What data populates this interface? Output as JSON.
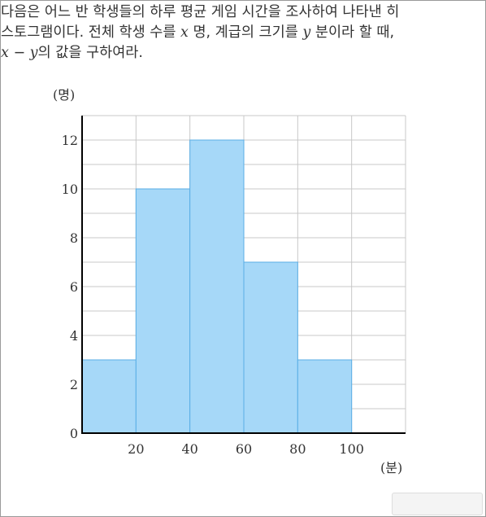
{
  "question": {
    "line1": "다음은 어느 반 학생들의 하루 평균 게임 시간을 조사하여 나타낸 히",
    "line2_a": "스토그램이다. 전체 학생 수를 ",
    "var_x": "x",
    "line2_b": " 명, 계급의 크기를 ",
    "var_y": "y",
    "line2_c": " 분이라 할 때,",
    "line3_x": "x",
    "line3_minus": " − ",
    "line3_y": "y",
    "line3_rest": "의 값을 구하여라."
  },
  "colors": {
    "bar_fill": "#a6d8f8",
    "bar_stroke": "#5aaee6",
    "grid": "#c8c8c8",
    "axis": "#000000",
    "answer_box": "#f4f4f4"
  },
  "chart_data": {
    "type": "bar",
    "subtype": "histogram",
    "bins": [
      {
        "start": 0,
        "end": 20,
        "value": 3
      },
      {
        "start": 20,
        "end": 40,
        "value": 10
      },
      {
        "start": 40,
        "end": 60,
        "value": 12
      },
      {
        "start": 60,
        "end": 80,
        "value": 7
      },
      {
        "start": 80,
        "end": 100,
        "value": 3
      }
    ],
    "x_ticks": [
      20,
      40,
      60,
      80,
      100
    ],
    "y_ticks": [
      0,
      2,
      4,
      6,
      8,
      10,
      12
    ],
    "xlim": [
      0,
      120
    ],
    "ylim": [
      0,
      13
    ],
    "xlabel": "(분)",
    "ylabel": "(명)",
    "grid": true,
    "minor_grid_y": 1
  }
}
